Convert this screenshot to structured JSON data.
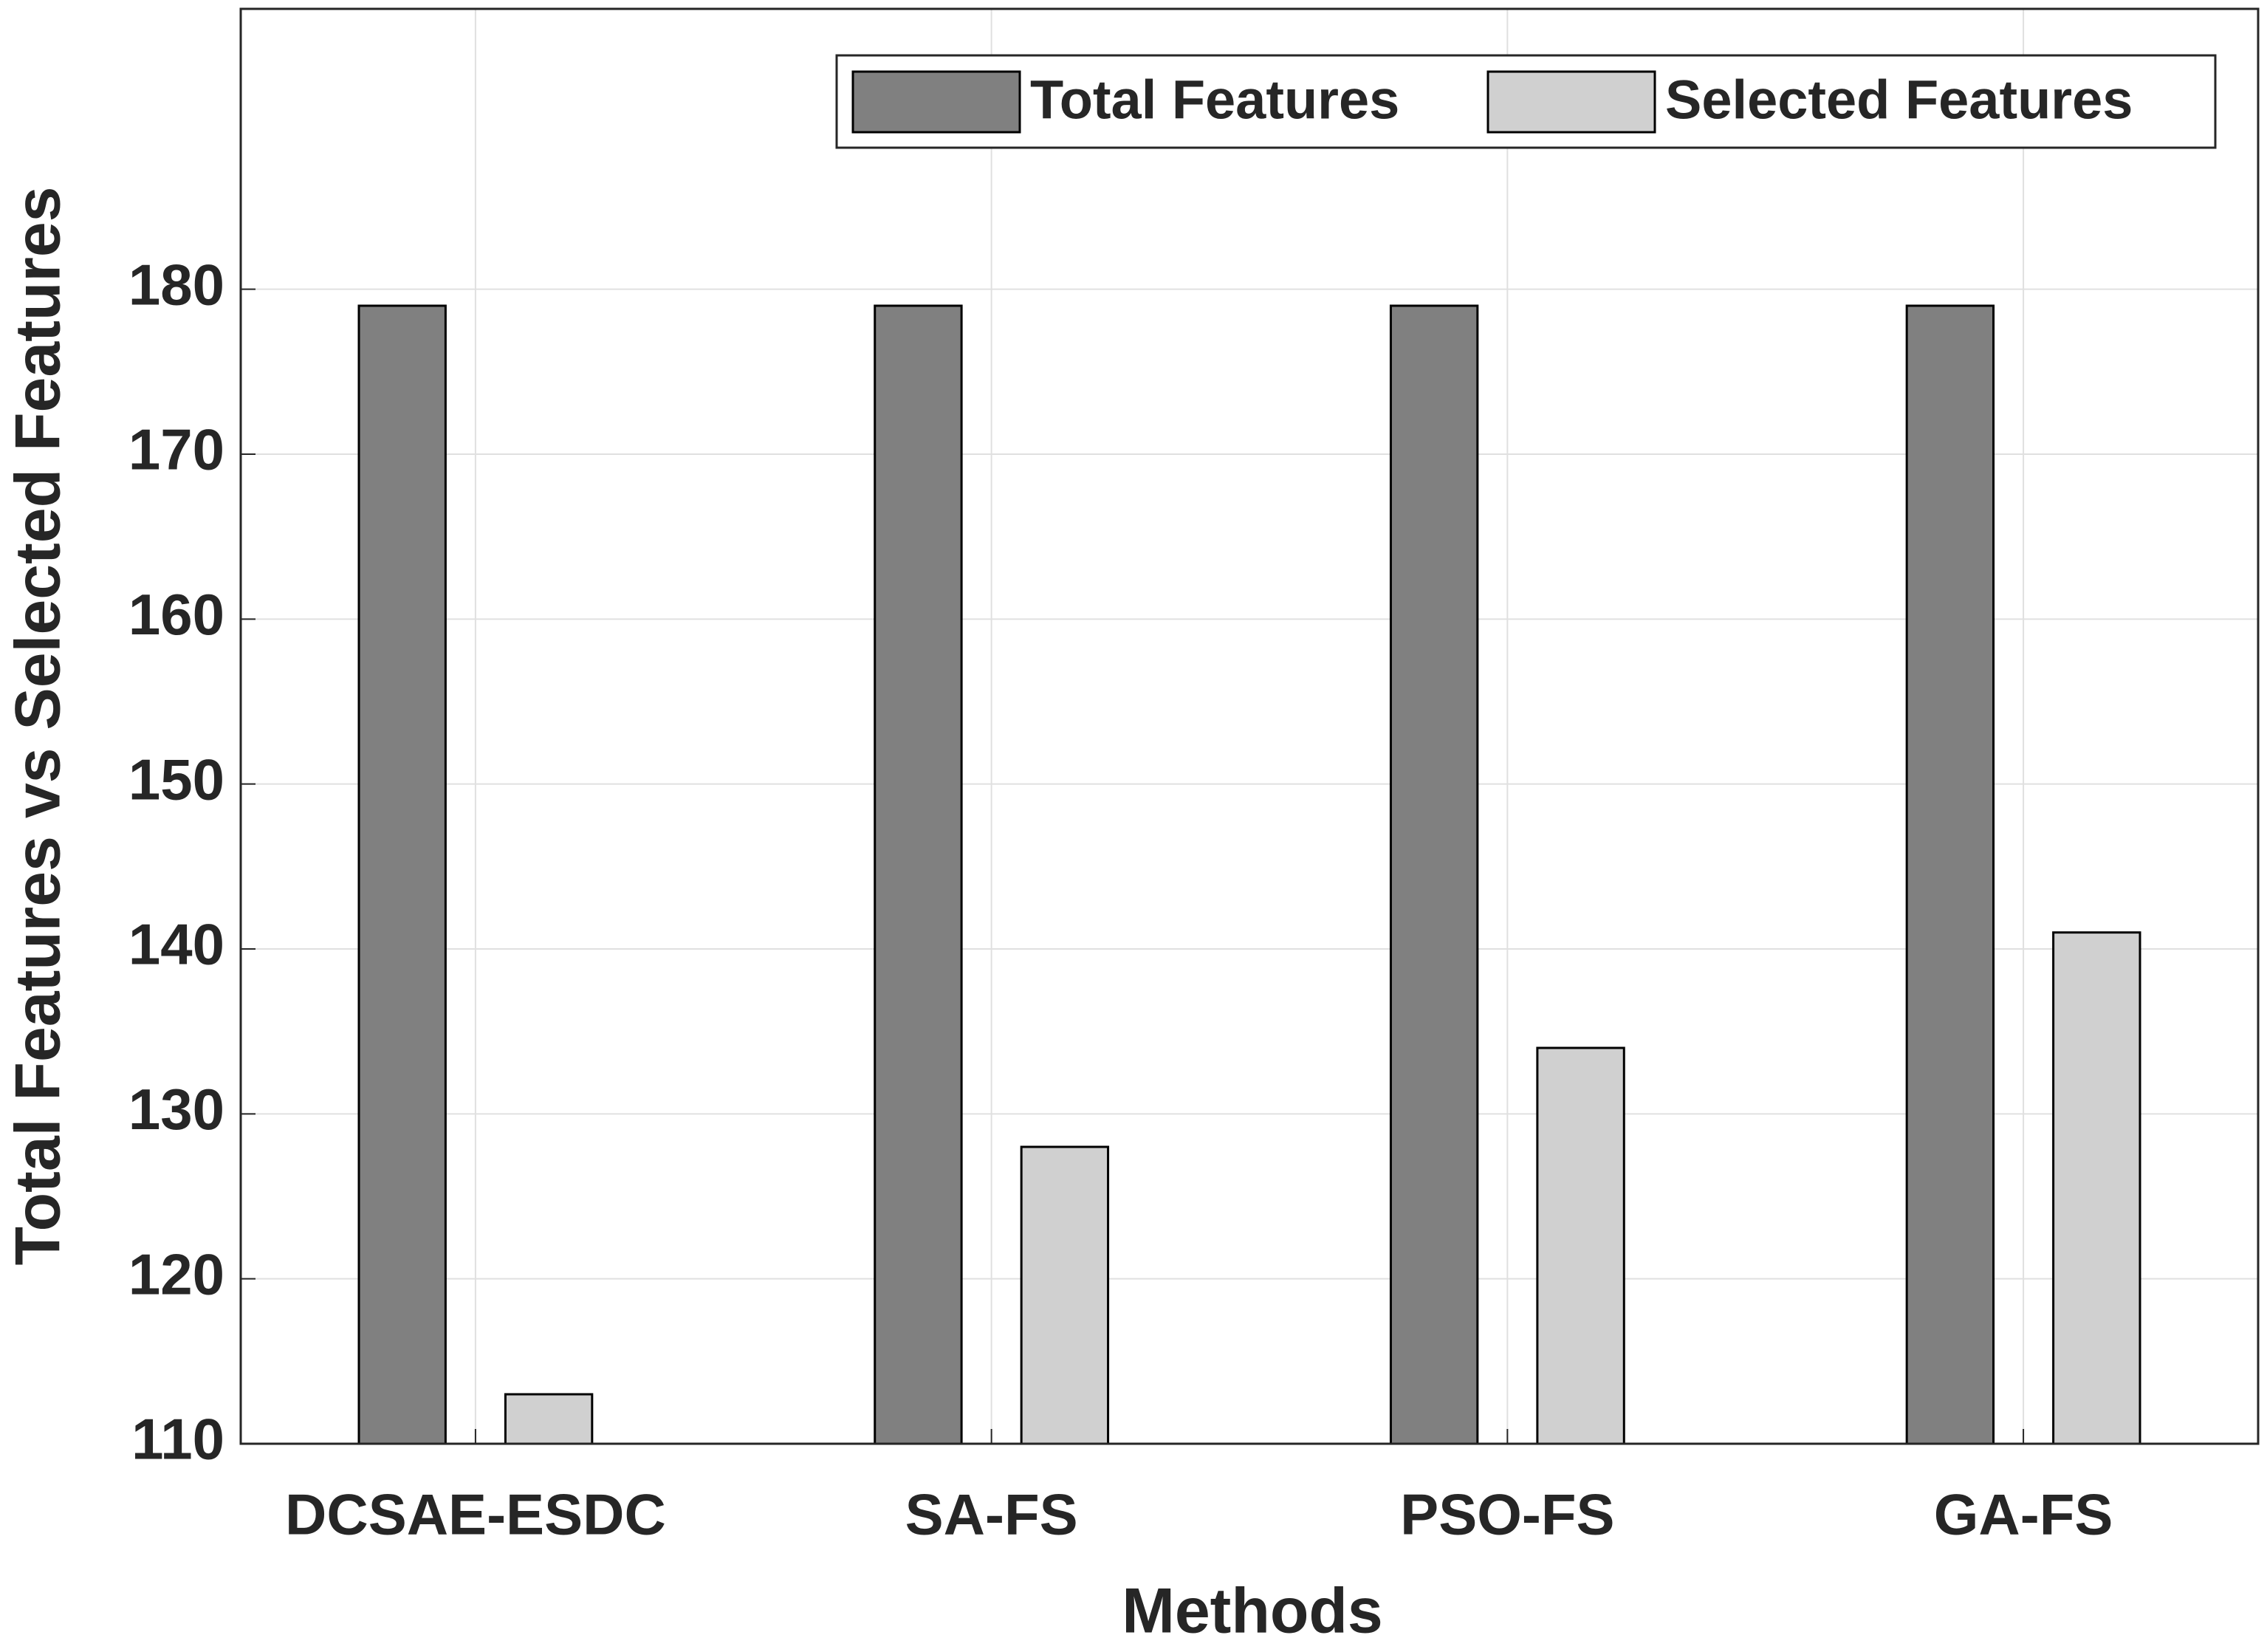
{
  "chart_data": {
    "type": "bar",
    "x_label": "Methods",
    "y_label": "Total Features vs Selected Features",
    "categories": [
      "DCSAE-ESDC",
      "SA-FS",
      "PSO-FS",
      "GA-FS"
    ],
    "series": [
      {
        "name": "Total Features",
        "color": "#808080",
        "values": [
          179,
          179,
          179,
          179
        ]
      },
      {
        "name": "Selected Features",
        "color": "#d0d0d0",
        "values": [
          113,
          128,
          134,
          141
        ]
      }
    ],
    "ylim": [
      110,
      197
    ],
    "yticks": [
      110,
      120,
      130,
      140,
      150,
      160,
      170,
      180
    ],
    "grid": true,
    "legend": "northeast"
  }
}
